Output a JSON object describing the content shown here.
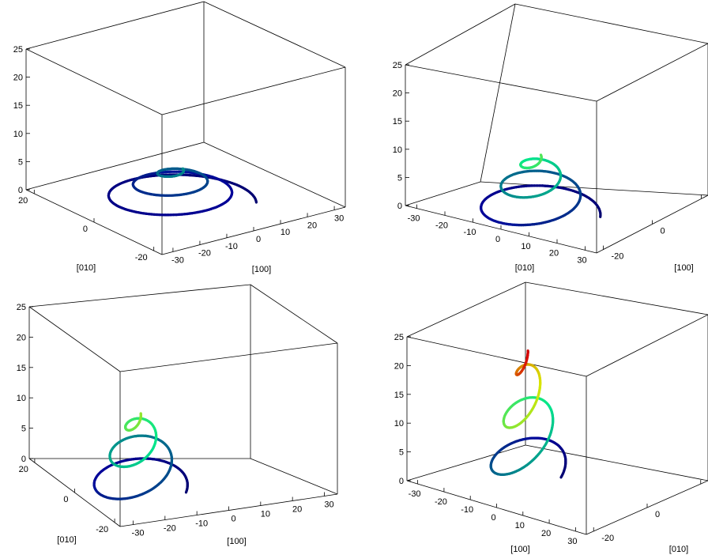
{
  "figure": {
    "panel_count": 4,
    "colormap": "jet",
    "curve_description": "3D spiral trajectories with color mapped to z-height (blue low, red high)"
  },
  "chart_data": [
    {
      "type": "line3d",
      "panel": "top-left",
      "x_ticks": [
        "-30",
        "-20",
        "-10",
        "0",
        "10",
        "20",
        "30"
      ],
      "y_ticks": [
        "20",
        "0",
        "-20"
      ],
      "z_ticks": [
        "0",
        "5",
        "10",
        "15",
        "20",
        "25"
      ],
      "xlabel": "[100]",
      "ylabel": "[010]",
      "zlim": [
        0,
        25
      ],
      "curve": {
        "turns": 3,
        "max_radius": 22,
        "z_start": 0,
        "z_end": 6,
        "color_start": "#0a1a8c",
        "color_end": "#44e0f0"
      }
    },
    {
      "type": "line3d",
      "panel": "top-right",
      "x_ticks": [
        "-30",
        "-20",
        "-10",
        "0",
        "10",
        "20",
        "30"
      ],
      "y_ticks": [
        "-20",
        "0",
        "20"
      ],
      "z_ticks": [
        "0",
        "5",
        "10",
        "15",
        "20",
        "25"
      ],
      "xlabel": "[010]",
      "ylabel": "[100]",
      "zlim": [
        0,
        25
      ],
      "curve": {
        "turns": 3,
        "max_radius": 22,
        "z_start": 0,
        "z_end": 11,
        "color_start": "#0a1a8c",
        "color_end": "#f0e020"
      }
    },
    {
      "type": "line3d",
      "panel": "bottom-left",
      "x_ticks": [
        "-30",
        "-20",
        "-10",
        "0",
        "10",
        "20",
        "30"
      ],
      "y_ticks": [
        "20",
        "0",
        "-20"
      ],
      "z_ticks": [
        "0",
        "5",
        "10",
        "15",
        "20",
        "25"
      ],
      "xlabel": "[100]",
      "ylabel": "[010]",
      "zlim": [
        0,
        25
      ],
      "curve": {
        "turns": 3,
        "max_radius": 22,
        "z_start": 0,
        "z_end": 13,
        "color_start": "#0a1a8c",
        "color_end": "#f0e020"
      }
    },
    {
      "type": "line3d",
      "panel": "bottom-right",
      "x_ticks": [
        "-30",
        "-20",
        "-10",
        "0",
        "10",
        "20",
        "30"
      ],
      "y_ticks": [
        "-20",
        "0",
        "20"
      ],
      "z_ticks": [
        "0",
        "5",
        "10",
        "15",
        "20",
        "25"
      ],
      "xlabel": "[100]",
      "ylabel": "[010]",
      "zlim": [
        0,
        25
      ],
      "curve": {
        "turns": 3,
        "max_radius": 22,
        "z_start": 0,
        "z_end": 22,
        "color_start": "#0a1a8c",
        "color_end": "#e81010"
      }
    }
  ]
}
